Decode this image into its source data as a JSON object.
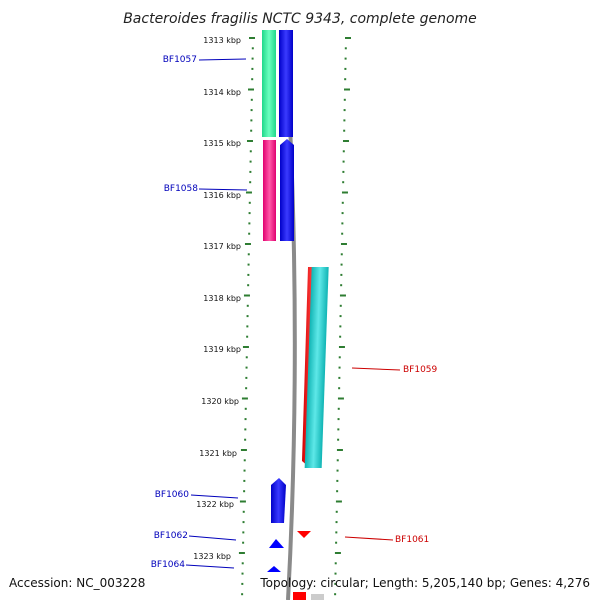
{
  "title": "Bacteroides fragilis NCTC 9343, complete genome",
  "footer": {
    "accession": "Accession: NC_003228",
    "topology": "Topology: circular; Length: 5,205,140 bp; Genes: 4,276"
  },
  "scale": {
    "labels": [
      "1313 kbp",
      "1314 kbp",
      "1315 kbp",
      "1316 kbp",
      "1317 kbp",
      "1318 kbp",
      "1319 kbp",
      "1320 kbp",
      "1321 kbp",
      "1322 kbp",
      "1323 kbp"
    ]
  },
  "genes": [
    {
      "label": "BF1057",
      "color": "#0000bb"
    },
    {
      "label": "BF1058",
      "color": "#0000bb"
    },
    {
      "label": "BF1059",
      "color": "#cc0000"
    },
    {
      "label": "BF1060",
      "color": "#0000bb"
    },
    {
      "label": "BF1061",
      "color": "#cc0000"
    },
    {
      "label": "BF1062",
      "color": "#0000bb"
    },
    {
      "label": "BF1064",
      "color": "#0000bb"
    }
  ],
  "colors": {
    "ticks": "#2e7d32",
    "forward_strand": "#0000ff",
    "reverse_strand": "#ff0000",
    "green_block": "#2fef9a",
    "magenta_block": "#ff1a8c",
    "cyan_block": "#1ec8c8",
    "backbone": "#888888"
  }
}
